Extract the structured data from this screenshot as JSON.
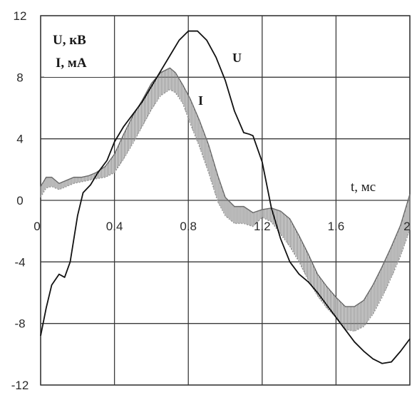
{
  "chart_data": {
    "type": "line",
    "title": "",
    "ylabel_line1": "U, кВ",
    "ylabel_line2": "I, мА",
    "xlabel": "t, мс",
    "xlim": [
      0,
      2
    ],
    "ylim": [
      -12,
      12
    ],
    "grid": true,
    "x_ticks": [
      "0",
      "0.4",
      "0.8",
      "1.2",
      "1.6",
      "2"
    ],
    "y_ticks": [
      "12",
      "8",
      "4",
      "0",
      "-4",
      "-8",
      "-12"
    ],
    "x_tick_values": [
      0,
      0.4,
      0.8,
      1.2,
      1.6,
      2
    ],
    "y_tick_values": [
      12,
      8,
      4,
      0,
      -4,
      -8,
      -12
    ],
    "series": [
      {
        "name": "U",
        "color": "#111111",
        "style": "solid",
        "x": [
          0,
          0.03,
          0.06,
          0.1,
          0.13,
          0.16,
          0.2,
          0.23,
          0.27,
          0.31,
          0.36,
          0.4,
          0.45,
          0.5,
          0.55,
          0.6,
          0.65,
          0.7,
          0.75,
          0.8,
          0.85,
          0.9,
          0.95,
          1.0,
          1.05,
          1.1,
          1.13,
          1.15,
          1.2,
          1.25,
          1.3,
          1.35,
          1.4,
          1.45,
          1.5,
          1.55,
          1.6,
          1.65,
          1.7,
          1.75,
          1.8,
          1.85,
          1.9,
          1.95,
          2.0
        ],
        "y": [
          -8.8,
          -7.0,
          -5.5,
          -4.8,
          -5.0,
          -4.0,
          -1.0,
          0.5,
          1.0,
          1.8,
          2.6,
          3.8,
          4.8,
          5.6,
          6.4,
          7.4,
          8.4,
          9.4,
          10.4,
          11.0,
          11.0,
          10.4,
          9.3,
          7.8,
          5.8,
          4.4,
          4.3,
          4.2,
          2.5,
          -0.5,
          -2.5,
          -4.0,
          -4.8,
          -5.3,
          -6.0,
          -6.8,
          -7.6,
          -8.4,
          -9.2,
          -9.8,
          -10.3,
          -10.6,
          -10.5,
          -9.8,
          -9.0
        ]
      },
      {
        "name": "I",
        "color": "#777777",
        "style": "band",
        "x": [
          0,
          0.03,
          0.06,
          0.1,
          0.14,
          0.18,
          0.22,
          0.26,
          0.3,
          0.35,
          0.4,
          0.45,
          0.5,
          0.55,
          0.6,
          0.65,
          0.7,
          0.73,
          0.77,
          0.81,
          0.86,
          0.91,
          0.96,
          1.0,
          1.05,
          1.1,
          1.15,
          1.2,
          1.25,
          1.3,
          1.35,
          1.4,
          1.45,
          1.5,
          1.55,
          1.6,
          1.65,
          1.7,
          1.75,
          1.8,
          1.85,
          1.9,
          1.95,
          2.0
        ],
        "y_upper": [
          0.9,
          1.5,
          1.5,
          1.1,
          1.3,
          1.5,
          1.5,
          1.6,
          1.8,
          2.2,
          3.0,
          4.3,
          5.5,
          6.5,
          7.6,
          8.3,
          8.6,
          8.3,
          7.5,
          6.6,
          5.2,
          3.6,
          1.6,
          0.2,
          -0.4,
          -0.4,
          -0.8,
          -0.6,
          -0.5,
          -0.7,
          -1.2,
          -2.3,
          -3.5,
          -4.8,
          -5.6,
          -6.3,
          -6.9,
          -6.9,
          -6.5,
          -5.5,
          -4.3,
          -3.0,
          -1.6,
          0.4
        ],
        "y_lower": [
          0.2,
          0.8,
          0.9,
          0.7,
          0.9,
          1.1,
          1.2,
          1.3,
          1.4,
          1.5,
          1.8,
          2.7,
          3.7,
          4.8,
          5.9,
          6.8,
          7.2,
          7.0,
          6.3,
          5.0,
          3.5,
          1.8,
          -0.1,
          -1.0,
          -1.5,
          -1.5,
          -1.7,
          -1.1,
          -1.4,
          -2.2,
          -3.0,
          -4.0,
          -5.2,
          -6.2,
          -7.0,
          -7.6,
          -8.4,
          -8.5,
          -8.2,
          -7.4,
          -6.3,
          -5.0,
          -3.6,
          -1.9
        ]
      }
    ]
  }
}
